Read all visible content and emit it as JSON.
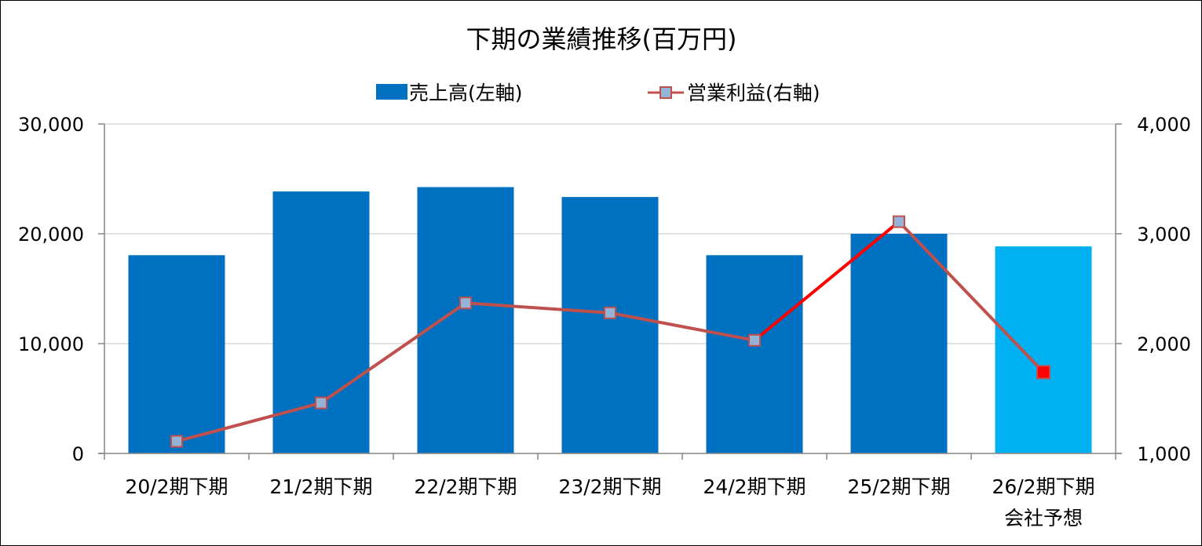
{
  "chart_data": {
    "type": "bar",
    "title": "下期の業績推移(百万円)",
    "categories": [
      [
        "20/2期下期"
      ],
      [
        "21/2期下期"
      ],
      [
        "22/2期下期"
      ],
      [
        "23/2期下期"
      ],
      [
        "24/2期下期"
      ],
      [
        "25/2期下期"
      ],
      [
        "26/2期下期",
        "会社予想"
      ]
    ],
    "series": [
      {
        "name": "売上高(左軸)",
        "kind": "bar",
        "axis": "left",
        "values": [
          18050,
          23850,
          24250,
          23350,
          18050,
          20000,
          18850
        ],
        "color": "#0070C0",
        "forecast_color": "#00B0F0",
        "forecast_index": 6
      },
      {
        "name": "営業利益(右軸)",
        "kind": "line",
        "axis": "right",
        "values": [
          1110,
          1460,
          2370,
          2280,
          2030,
          3110,
          1740
        ],
        "line_color": "#C0504D",
        "highlight_color": "#FF0000",
        "highlight_segments": [
          [
            4,
            5
          ]
        ],
        "marker_fill": "#95B3D7",
        "marker_edge": "#C0504D",
        "forecast_marker_fill": "#FF0000",
        "forecast_index": 6
      }
    ],
    "y_left": {
      "min": 0,
      "max": 30000,
      "ticks": [
        "0",
        "10,000",
        "20,000",
        "30,000"
      ],
      "tick_values": [
        0,
        10000,
        20000,
        30000
      ]
    },
    "y_right": {
      "min": 1000,
      "max": 4000,
      "ticks": [
        "1,000",
        "2,000",
        "3,000",
        "4,000"
      ],
      "tick_values": [
        1000,
        2000,
        3000,
        4000
      ]
    },
    "grid": true,
    "grid_color": "#D9D9D9",
    "legend_position": "top"
  }
}
